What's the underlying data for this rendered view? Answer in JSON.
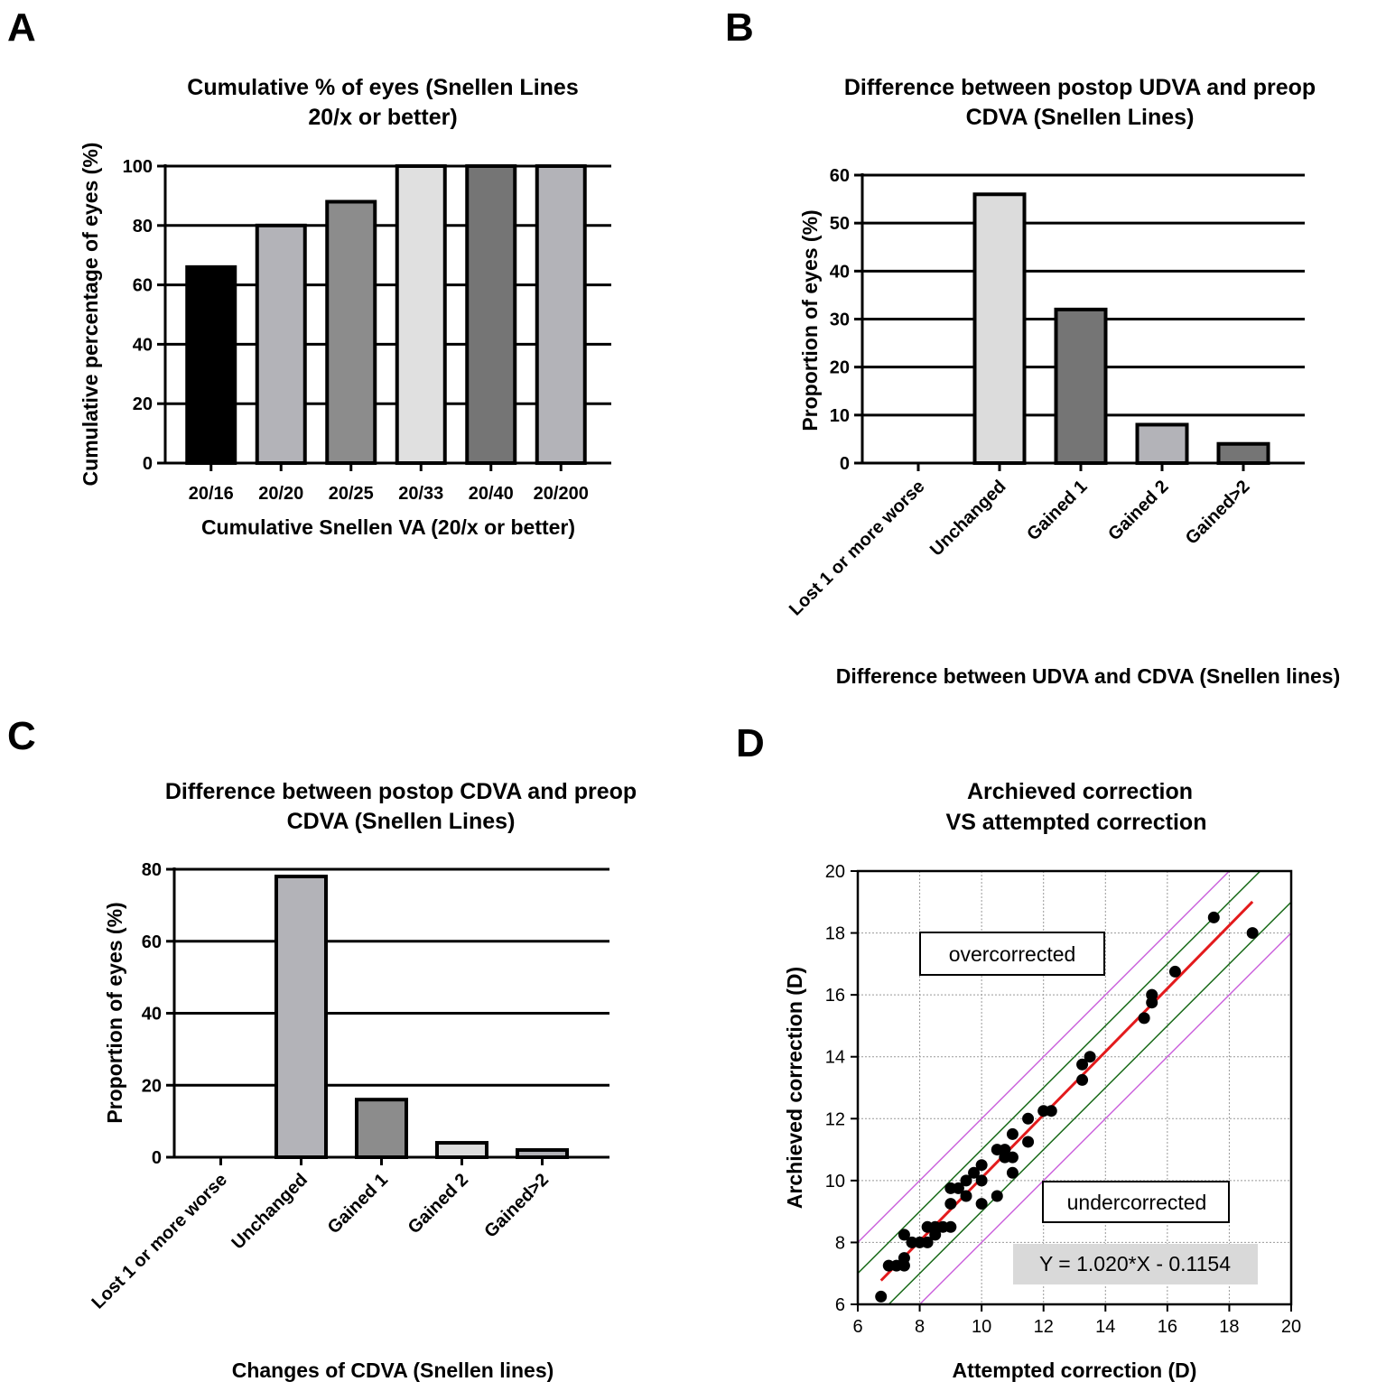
{
  "chart_data": [
    {
      "panel": "A",
      "type": "bar",
      "title": [
        "Cumulative % of eyes (Snellen Lines",
        "20/x or better)"
      ],
      "xlabel": "Cumulative Snellen VA (20/x or better)",
      "ylabel": "Cumulative percentage of eyes (%)",
      "ylim": [
        0,
        100
      ],
      "yticks": [
        0,
        20,
        40,
        60,
        80,
        100
      ],
      "grid": "horizontal",
      "categories": [
        "20/16",
        "20/20",
        "20/25",
        "20/33",
        "20/40",
        "20/200"
      ],
      "values": [
        66,
        80,
        88,
        100,
        100,
        100
      ],
      "colors": [
        "#000000",
        "#b3b3b8",
        "#8c8c8c",
        "#e0e0e0",
        "#757575",
        "#b3b3b8"
      ]
    },
    {
      "panel": "B",
      "type": "bar",
      "title": [
        "Difference between postop UDVA and preop",
        "CDVA (Snellen Lines)"
      ],
      "xlabel": "Difference between UDVA and CDVA (Snellen lines)",
      "ylabel": "Proportion of eyes (%)",
      "ylim": [
        0,
        60
      ],
      "yticks": [
        0,
        10,
        20,
        30,
        40,
        50,
        60
      ],
      "grid": "horizontal",
      "categories": [
        "Lost 1 or more worse",
        "Unchanged",
        "Gained 1",
        "Gained 2",
        "Gained>2"
      ],
      "values": [
        0,
        56,
        32,
        8,
        4
      ],
      "colors": [
        "#ffffff",
        "#dcdcdc",
        "#757575",
        "#b3b3b8",
        "#757575"
      ]
    },
    {
      "panel": "C",
      "type": "bar",
      "title": [
        "Difference between postop CDVA and preop",
        "CDVA (Snellen Lines)"
      ],
      "xlabel": "Changes of CDVA (Snellen lines)",
      "ylabel": "Proportion of eyes (%)",
      "ylim": [
        0,
        80
      ],
      "yticks": [
        0,
        20,
        40,
        60,
        80
      ],
      "grid": "horizontal",
      "categories": [
        "Lost 1 or more worse",
        "Unchanged",
        "Gained 1",
        "Gained 2",
        "Gained>2"
      ],
      "values": [
        0,
        78,
        16,
        4,
        2
      ],
      "colors": [
        "#ffffff",
        "#b3b3b8",
        "#8c8c8c",
        "#dcdcdc",
        "#b3b3b8"
      ]
    },
    {
      "panel": "D",
      "type": "scatter",
      "title": [
        "Archieved correction",
        "VS attempted correction"
      ],
      "xlabel": "Attempted correction (D)",
      "ylabel": "Archieved correction (D)",
      "xlim": [
        6,
        20
      ],
      "ylim": [
        6,
        20
      ],
      "xticks": [
        6,
        8,
        10,
        12,
        14,
        16,
        18,
        20
      ],
      "yticks": [
        6,
        8,
        10,
        12,
        14,
        16,
        18,
        20
      ],
      "grid": "both-dotted",
      "annotations": [
        "overcorrected",
        "undercorrected"
      ],
      "equation": "Y = 1.020*X - 0.1154",
      "fit": {
        "slope": 1.02,
        "intercept": -0.1154,
        "x_range": [
          6.75,
          18.75
        ],
        "color": "#e31a1c"
      },
      "bands": [
        {
          "offset": 1.0,
          "color": "#1a6b1a"
        },
        {
          "offset": -1.0,
          "color": "#1a6b1a"
        },
        {
          "offset": 2.0,
          "color": "#cc66dd"
        },
        {
          "offset": -2.0,
          "color": "#cc66dd"
        }
      ],
      "points": [
        [
          6.75,
          6.25
        ],
        [
          7.0,
          7.25
        ],
        [
          7.25,
          7.25
        ],
        [
          7.5,
          7.25
        ],
        [
          7.5,
          7.5
        ],
        [
          7.5,
          8.25
        ],
        [
          7.75,
          8.0
        ],
        [
          8.0,
          8.0
        ],
        [
          8.25,
          8.0
        ],
        [
          8.25,
          8.5
        ],
        [
          8.5,
          8.25
        ],
        [
          8.5,
          8.5
        ],
        [
          8.75,
          8.5
        ],
        [
          9.0,
          8.5
        ],
        [
          9.0,
          9.25
        ],
        [
          9.0,
          9.75
        ],
        [
          9.25,
          9.75
        ],
        [
          9.5,
          9.5
        ],
        [
          9.5,
          10.0
        ],
        [
          9.75,
          10.25
        ],
        [
          10.0,
          9.25
        ],
        [
          10.0,
          10.0
        ],
        [
          10.0,
          10.5
        ],
        [
          10.5,
          9.5
        ],
        [
          10.5,
          11.0
        ],
        [
          10.75,
          11.0
        ],
        [
          10.75,
          10.75
        ],
        [
          11.0,
          10.25
        ],
        [
          11.0,
          10.75
        ],
        [
          11.0,
          11.5
        ],
        [
          11.5,
          11.25
        ],
        [
          11.5,
          12.0
        ],
        [
          12.0,
          12.25
        ],
        [
          12.25,
          12.25
        ],
        [
          13.25,
          13.25
        ],
        [
          13.25,
          13.75
        ],
        [
          13.5,
          14.0
        ],
        [
          15.25,
          15.25
        ],
        [
          15.5,
          15.75
        ],
        [
          15.5,
          16.0
        ],
        [
          16.25,
          16.75
        ],
        [
          17.5,
          18.5
        ],
        [
          18.75,
          18.0
        ]
      ]
    }
  ]
}
